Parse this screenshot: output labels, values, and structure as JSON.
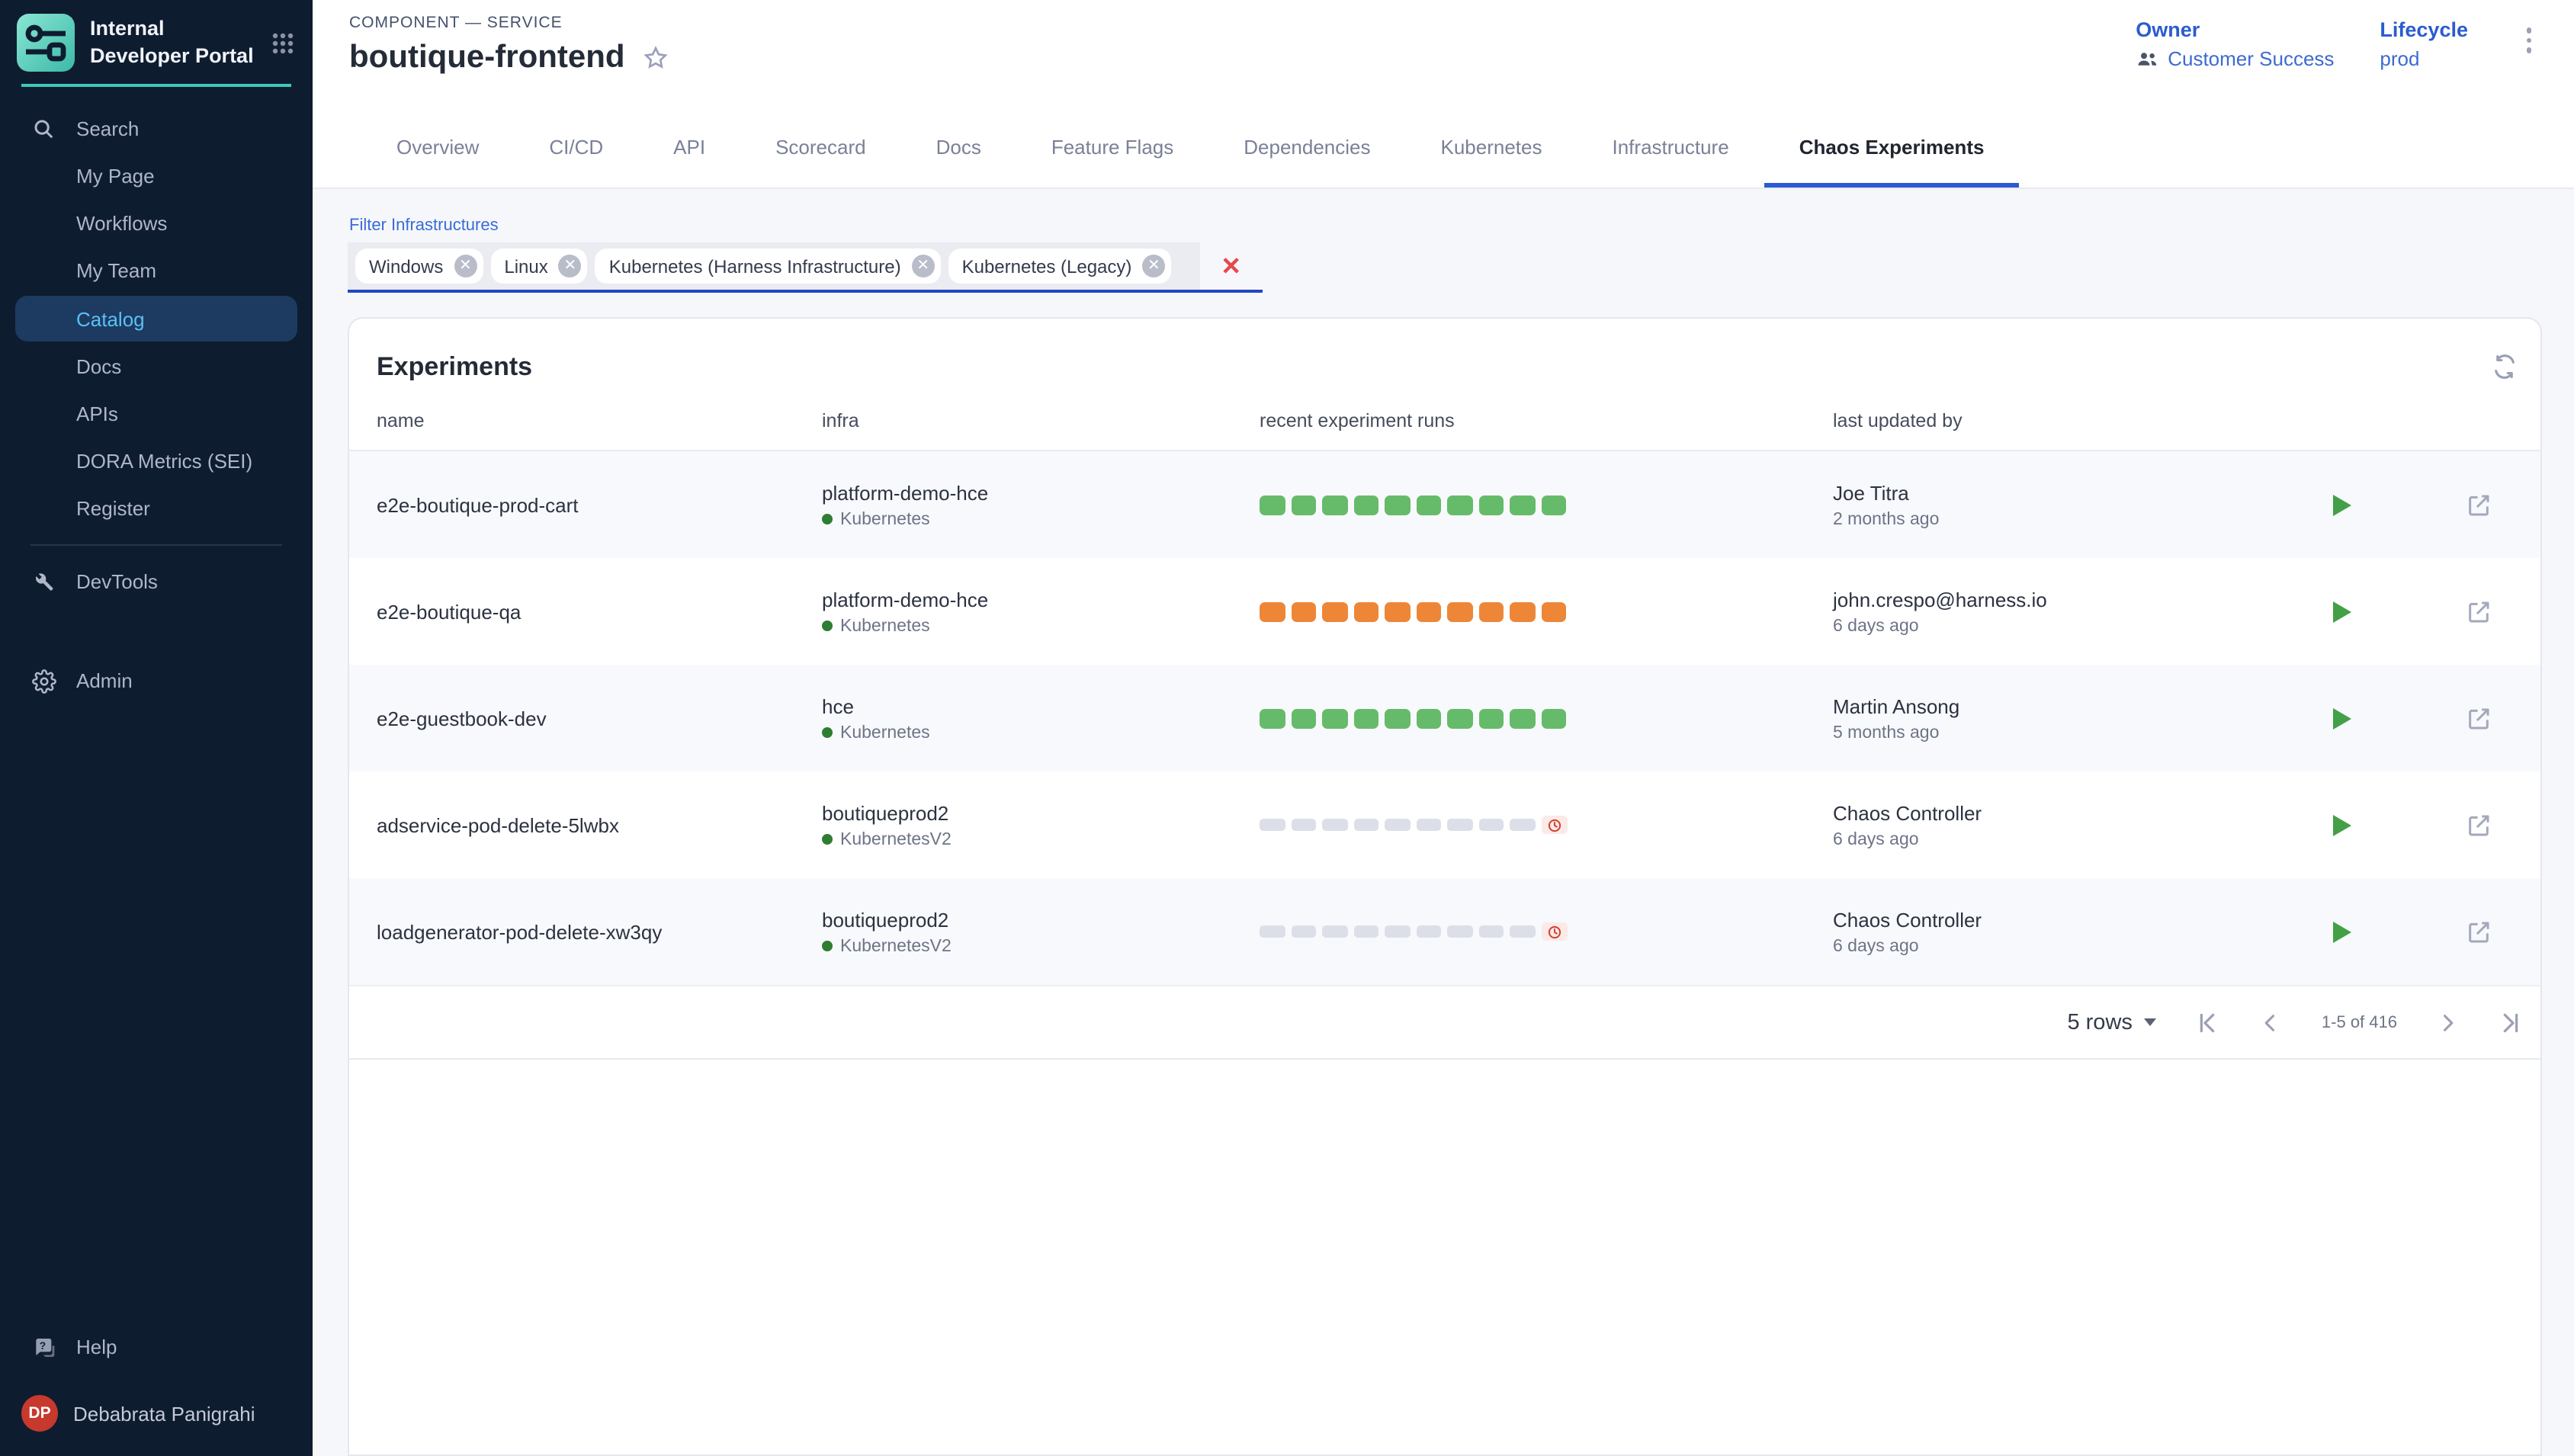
{
  "sidebar": {
    "brand": {
      "title": "Internal Developer Portal"
    },
    "items": [
      {
        "label": "Search",
        "icon": "search"
      },
      {
        "label": "My Page"
      },
      {
        "label": "Workflows"
      },
      {
        "label": "My Team"
      },
      {
        "label": "Catalog",
        "active": true
      },
      {
        "label": "Docs"
      },
      {
        "label": "APIs"
      },
      {
        "label": "DORA Metrics (SEI)"
      },
      {
        "label": "Register"
      }
    ],
    "devtools_label": "DevTools",
    "admin_label": "Admin",
    "help_label": "Help",
    "user": {
      "initials": "DP",
      "name": "Debabrata Panigrahi"
    }
  },
  "header": {
    "eyebrow": "COMPONENT — SERVICE",
    "title": "boutique-frontend",
    "owner_label": "Owner",
    "owner_value": "Customer Success",
    "lifecycle_label": "Lifecycle",
    "lifecycle_value": "prod"
  },
  "tabs": [
    {
      "label": "Overview"
    },
    {
      "label": "CI/CD"
    },
    {
      "label": "API"
    },
    {
      "label": "Scorecard"
    },
    {
      "label": "Docs"
    },
    {
      "label": "Feature Flags"
    },
    {
      "label": "Dependencies"
    },
    {
      "label": "Kubernetes"
    },
    {
      "label": "Infrastructure"
    },
    {
      "label": "Chaos Experiments",
      "active": true
    }
  ],
  "filter": {
    "label": "Filter Infrastructures",
    "chips": [
      "Windows",
      "Linux",
      "Kubernetes (Harness Infrastructure)",
      "Kubernetes (Legacy)"
    ]
  },
  "experiments": {
    "title": "Experiments",
    "columns": [
      "name",
      "infra",
      "recent experiment runs",
      "last updated by"
    ],
    "status_colors": {
      "passed": "#66bb6a",
      "failed": "#ee8638",
      "pending": "#dcdfe8",
      "stopped_clock": "#d23f31"
    },
    "rows": [
      {
        "name": "e2e-boutique-prod-cart",
        "infra_name": "platform-demo-hce",
        "infra_type": "Kubernetes",
        "runs": {
          "status": "passed",
          "count": 10,
          "clock": false
        },
        "updated_by": "Joe Titra",
        "updated_at": "2 months ago"
      },
      {
        "name": "e2e-boutique-qa",
        "infra_name": "platform-demo-hce",
        "infra_type": "Kubernetes",
        "runs": {
          "status": "failed",
          "count": 10,
          "clock": false
        },
        "updated_by": "john.crespo@harness.io",
        "updated_at": "6 days ago"
      },
      {
        "name": "e2e-guestbook-dev",
        "infra_name": "hce",
        "infra_type": "Kubernetes",
        "runs": {
          "status": "passed",
          "count": 10,
          "clock": false
        },
        "updated_by": "Martin Ansong",
        "updated_at": "5 months ago"
      },
      {
        "name": "adservice-pod-delete-5lwbx",
        "infra_name": "boutiqueprod2",
        "infra_type": "KubernetesV2",
        "runs": {
          "status": "pending",
          "count": 9,
          "clock": true
        },
        "updated_by": "Chaos Controller",
        "updated_at": "6 days ago"
      },
      {
        "name": "loadgenerator-pod-delete-xw3qy",
        "infra_name": "boutiqueprod2",
        "infra_type": "KubernetesV2",
        "runs": {
          "status": "pending",
          "count": 9,
          "clock": true
        },
        "updated_by": "Chaos Controller",
        "updated_at": "6 days ago"
      }
    ],
    "pagination": {
      "rows_per_page": "5 rows",
      "range": "1-5 of 416"
    }
  }
}
